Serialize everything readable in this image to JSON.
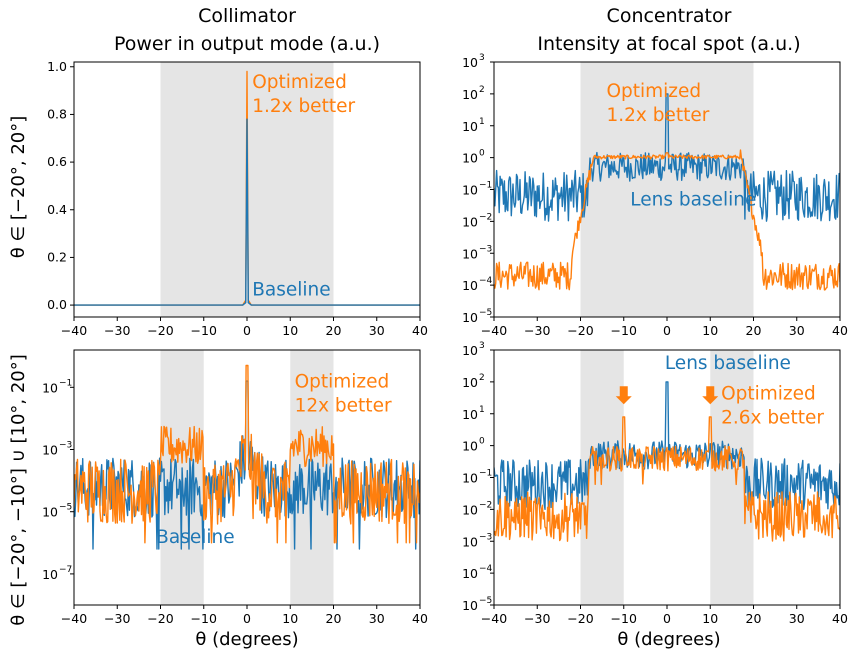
{
  "titles": {
    "left_line1": "Collimator",
    "left_line2": "Power in output mode (a.u.)",
    "right_line1": "Concentrator",
    "right_line2": "Intensity at focal spot (a.u.)"
  },
  "row_labels": {
    "top": "θ ∈ [−20°, 20°]",
    "bottom": "θ ∈ [−20°, −10°] ∪ [10°, 20°]"
  },
  "xlabel": "θ (degrees)",
  "colors": {
    "baseline": "#1f77b4",
    "optimized": "#ff7f0e",
    "shade": "#e5e5e5"
  },
  "chart_data": [
    {
      "id": "collimator-top",
      "type": "line",
      "xlim": [
        -40,
        40
      ],
      "ylim": [
        -0.05,
        1.02
      ],
      "yscale": "linear",
      "x_ticks": [
        -40,
        -30,
        -20,
        -10,
        0,
        10,
        20,
        30,
        40
      ],
      "y_ticks": [
        0.0,
        0.2,
        0.4,
        0.6,
        0.8,
        1.0
      ],
      "y_tick_labels": [
        "0.0",
        "0.2",
        "0.4",
        "0.6",
        "0.8",
        "1.0"
      ],
      "shaded_ranges": [
        [
          -20,
          20
        ]
      ],
      "series": [
        {
          "name": "Optimized",
          "color": "#ff7f0e",
          "x": [
            -40,
            -1,
            -0.3,
            0,
            0.3,
            1,
            40
          ],
          "y": [
            0,
            0,
            0.02,
            0.98,
            0.02,
            0,
            0
          ]
        },
        {
          "name": "Baseline",
          "color": "#1f77b4",
          "x": [
            -40,
            -1,
            -0.3,
            0,
            0.3,
            1,
            40
          ],
          "y": [
            0,
            0,
            0.01,
            0.78,
            0.01,
            0,
            0
          ]
        }
      ],
      "annotations": [
        {
          "lines": [
            "Optimized",
            "1.2x better"
          ],
          "color": "#ff7f0e",
          "x": 1.2,
          "y": 0.91
        },
        {
          "lines": [
            "Baseline"
          ],
          "color": "#1f77b4",
          "x": 1.2,
          "y": 0.04
        }
      ]
    },
    {
      "id": "concentrator-top",
      "type": "line",
      "xlim": [
        -40,
        40
      ],
      "ylim": [
        -5,
        3
      ],
      "yscale": "log",
      "x_ticks": [
        -40,
        -30,
        -20,
        -10,
        0,
        10,
        20,
        30,
        40
      ],
      "y_ticks": [
        -5,
        -4,
        -3,
        -2,
        -1,
        0,
        1,
        2,
        3
      ],
      "y_tick_labels": [
        "10",
        "10",
        "10",
        "10",
        "10",
        "10",
        "10",
        "10",
        "10"
      ],
      "y_tick_exponents": [
        "−5",
        "−4",
        "−3",
        "−2",
        "−1",
        "0",
        "1",
        "2",
        "3"
      ],
      "shaded_ranges": [
        [
          -20,
          20
        ]
      ],
      "series": [
        {
          "name": "Lens baseline",
          "color": "#1f77b4",
          "profile": "baseline-flat",
          "peak_log": 2.0
        },
        {
          "name": "Optimized",
          "color": "#ff7f0e",
          "profile": "optimized-top"
        }
      ],
      "annotations": [
        {
          "lines": [
            "Optimized",
            "1.2x better"
          ],
          "color": "#ff7f0e",
          "x": -14,
          "y": 1.9
        },
        {
          "lines": [
            "Lens baseline"
          ],
          "color": "#1f77b4",
          "x": -8.5,
          "y": -1.5
        }
      ]
    },
    {
      "id": "collimator-bottom",
      "type": "line",
      "xlim": [
        -40,
        40
      ],
      "ylim": [
        -8,
        0.2
      ],
      "yscale": "log",
      "x_ticks": [
        -40,
        -30,
        -20,
        -10,
        0,
        10,
        20,
        30,
        40
      ],
      "y_ticks": [
        -7,
        -5,
        -3,
        -1
      ],
      "y_tick_labels": [
        "10",
        "10",
        "10",
        "10"
      ],
      "y_tick_exponents": [
        "−7",
        "−5",
        "−3",
        "−1"
      ],
      "shaded_ranges": [
        [
          -20,
          -10
        ],
        [
          10,
          20
        ]
      ],
      "series": [
        {
          "name": "Baseline",
          "color": "#1f77b4",
          "profile": "noise-low",
          "peak_log": -0.8
        },
        {
          "name": "Optimized",
          "color": "#ff7f0e",
          "profile": "optimized-bottom-left",
          "peak_log": -0.3
        }
      ],
      "annotations": [
        {
          "lines": [
            "Optimized",
            "12x better"
          ],
          "color": "#ff7f0e",
          "x": 11,
          "y": -1.0
        },
        {
          "lines": [
            "Baseline"
          ],
          "color": "#1f77b4",
          "x": -21,
          "y": -6.0
        }
      ]
    },
    {
      "id": "concentrator-bottom",
      "type": "line",
      "xlim": [
        -40,
        40
      ],
      "ylim": [
        -5,
        3
      ],
      "yscale": "log",
      "x_ticks": [
        -40,
        -30,
        -20,
        -10,
        0,
        10,
        20,
        30,
        40
      ],
      "y_ticks": [
        -5,
        -4,
        -3,
        -2,
        -1,
        0,
        1,
        2,
        3
      ],
      "y_tick_labels": [
        "10",
        "10",
        "10",
        "10",
        "10",
        "10",
        "10",
        "10",
        "10"
      ],
      "y_tick_exponents": [
        "−5",
        "−4",
        "−3",
        "−2",
        "−1",
        "0",
        "1",
        "2",
        "3"
      ],
      "shaded_ranges": [
        [
          -20,
          -10
        ],
        [
          10,
          20
        ]
      ],
      "series": [
        {
          "name": "Lens baseline",
          "color": "#1f77b4",
          "profile": "baseline-flat",
          "peak_log": 2.0
        },
        {
          "name": "Optimized",
          "color": "#ff7f0e",
          "profile": "optimized-bottom-right"
        }
      ],
      "annotations": [
        {
          "lines": [
            "Lens baseline"
          ],
          "color": "#1f77b4",
          "x": -0.5,
          "y": 2.4
        },
        {
          "lines": [
            "Optimized",
            "2.6x better"
          ],
          "color": "#ff7f0e",
          "x": 12.5,
          "y": 1.45
        }
      ],
      "arrows": [
        {
          "x": -10,
          "y": 1.3
        },
        {
          "x": 10,
          "y": 1.3
        }
      ]
    }
  ]
}
